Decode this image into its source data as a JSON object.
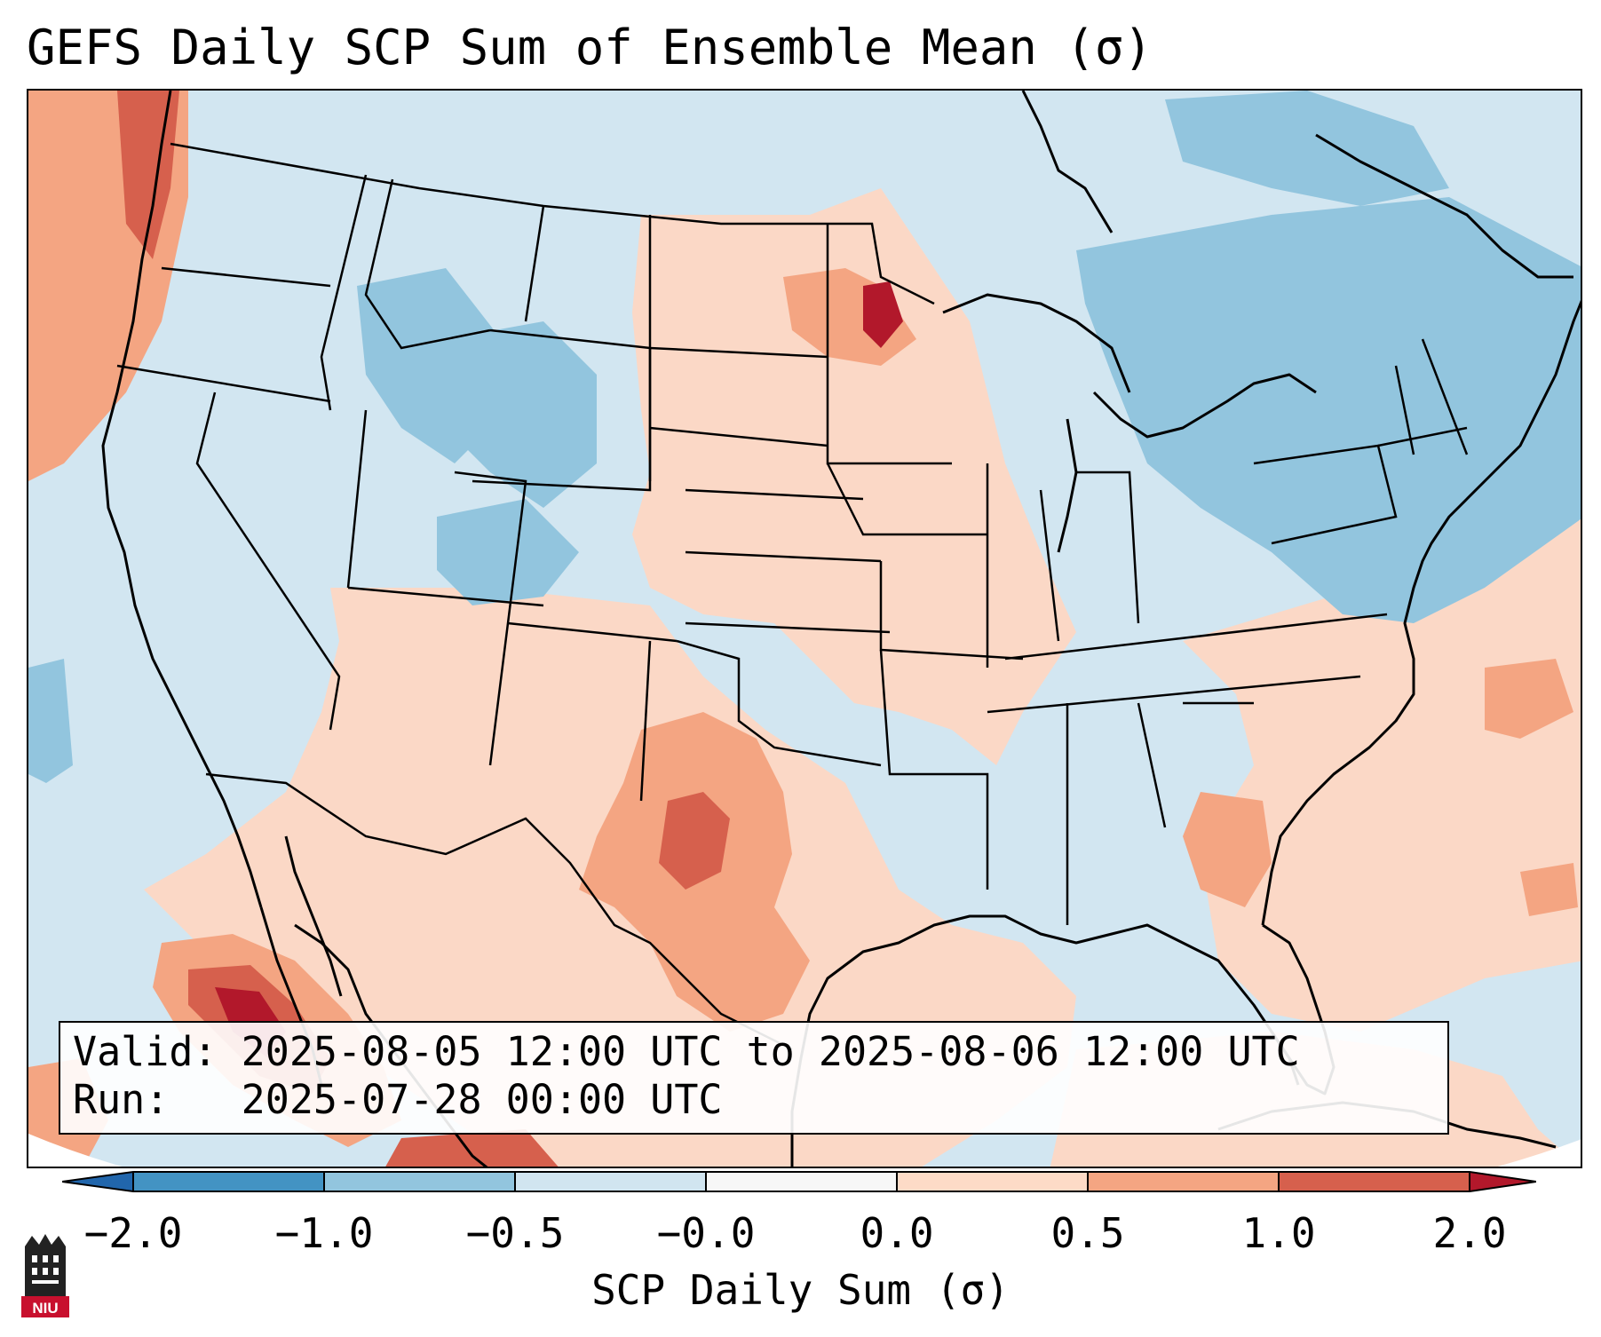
{
  "title": "GEFS Daily SCP Sum of Ensemble Mean (σ)",
  "info": {
    "valid_label": "Valid:",
    "valid_value": "2025-08-05 12:00 UTC to 2025-08-06 12:00 UTC",
    "run_label": "Run:",
    "run_value": "2025-07-28 00:00 UTC"
  },
  "colorbar": {
    "label": "SCP Daily Sum (σ)",
    "ticks": [
      "−2.0",
      "−1.0",
      "−0.5",
      "−0.0",
      "0.0",
      "0.5",
      "1.0",
      "2.0"
    ],
    "bins": [
      {
        "range": "< -2.0",
        "color": "#2166ac"
      },
      {
        "range": "-2.0 to -1.0",
        "color": "#4393c3"
      },
      {
        "range": "-1.0 to -0.5",
        "color": "#92c5de"
      },
      {
        "range": "-0.5 to -0.0",
        "color": "#d1e5f0"
      },
      {
        "range": "-0.0 to 0.0",
        "color": "#f7f7f7"
      },
      {
        "range": "0.0 to 0.5",
        "color": "#fddbc7"
      },
      {
        "range": "0.5 to 1.0",
        "color": "#f4a582"
      },
      {
        "range": "1.0 to 2.0",
        "color": "#d6604d"
      },
      {
        "range": "> 2.0",
        "color": "#b2182b"
      }
    ]
  },
  "logo": {
    "text": "NIU",
    "name": "niu-logo"
  }
}
